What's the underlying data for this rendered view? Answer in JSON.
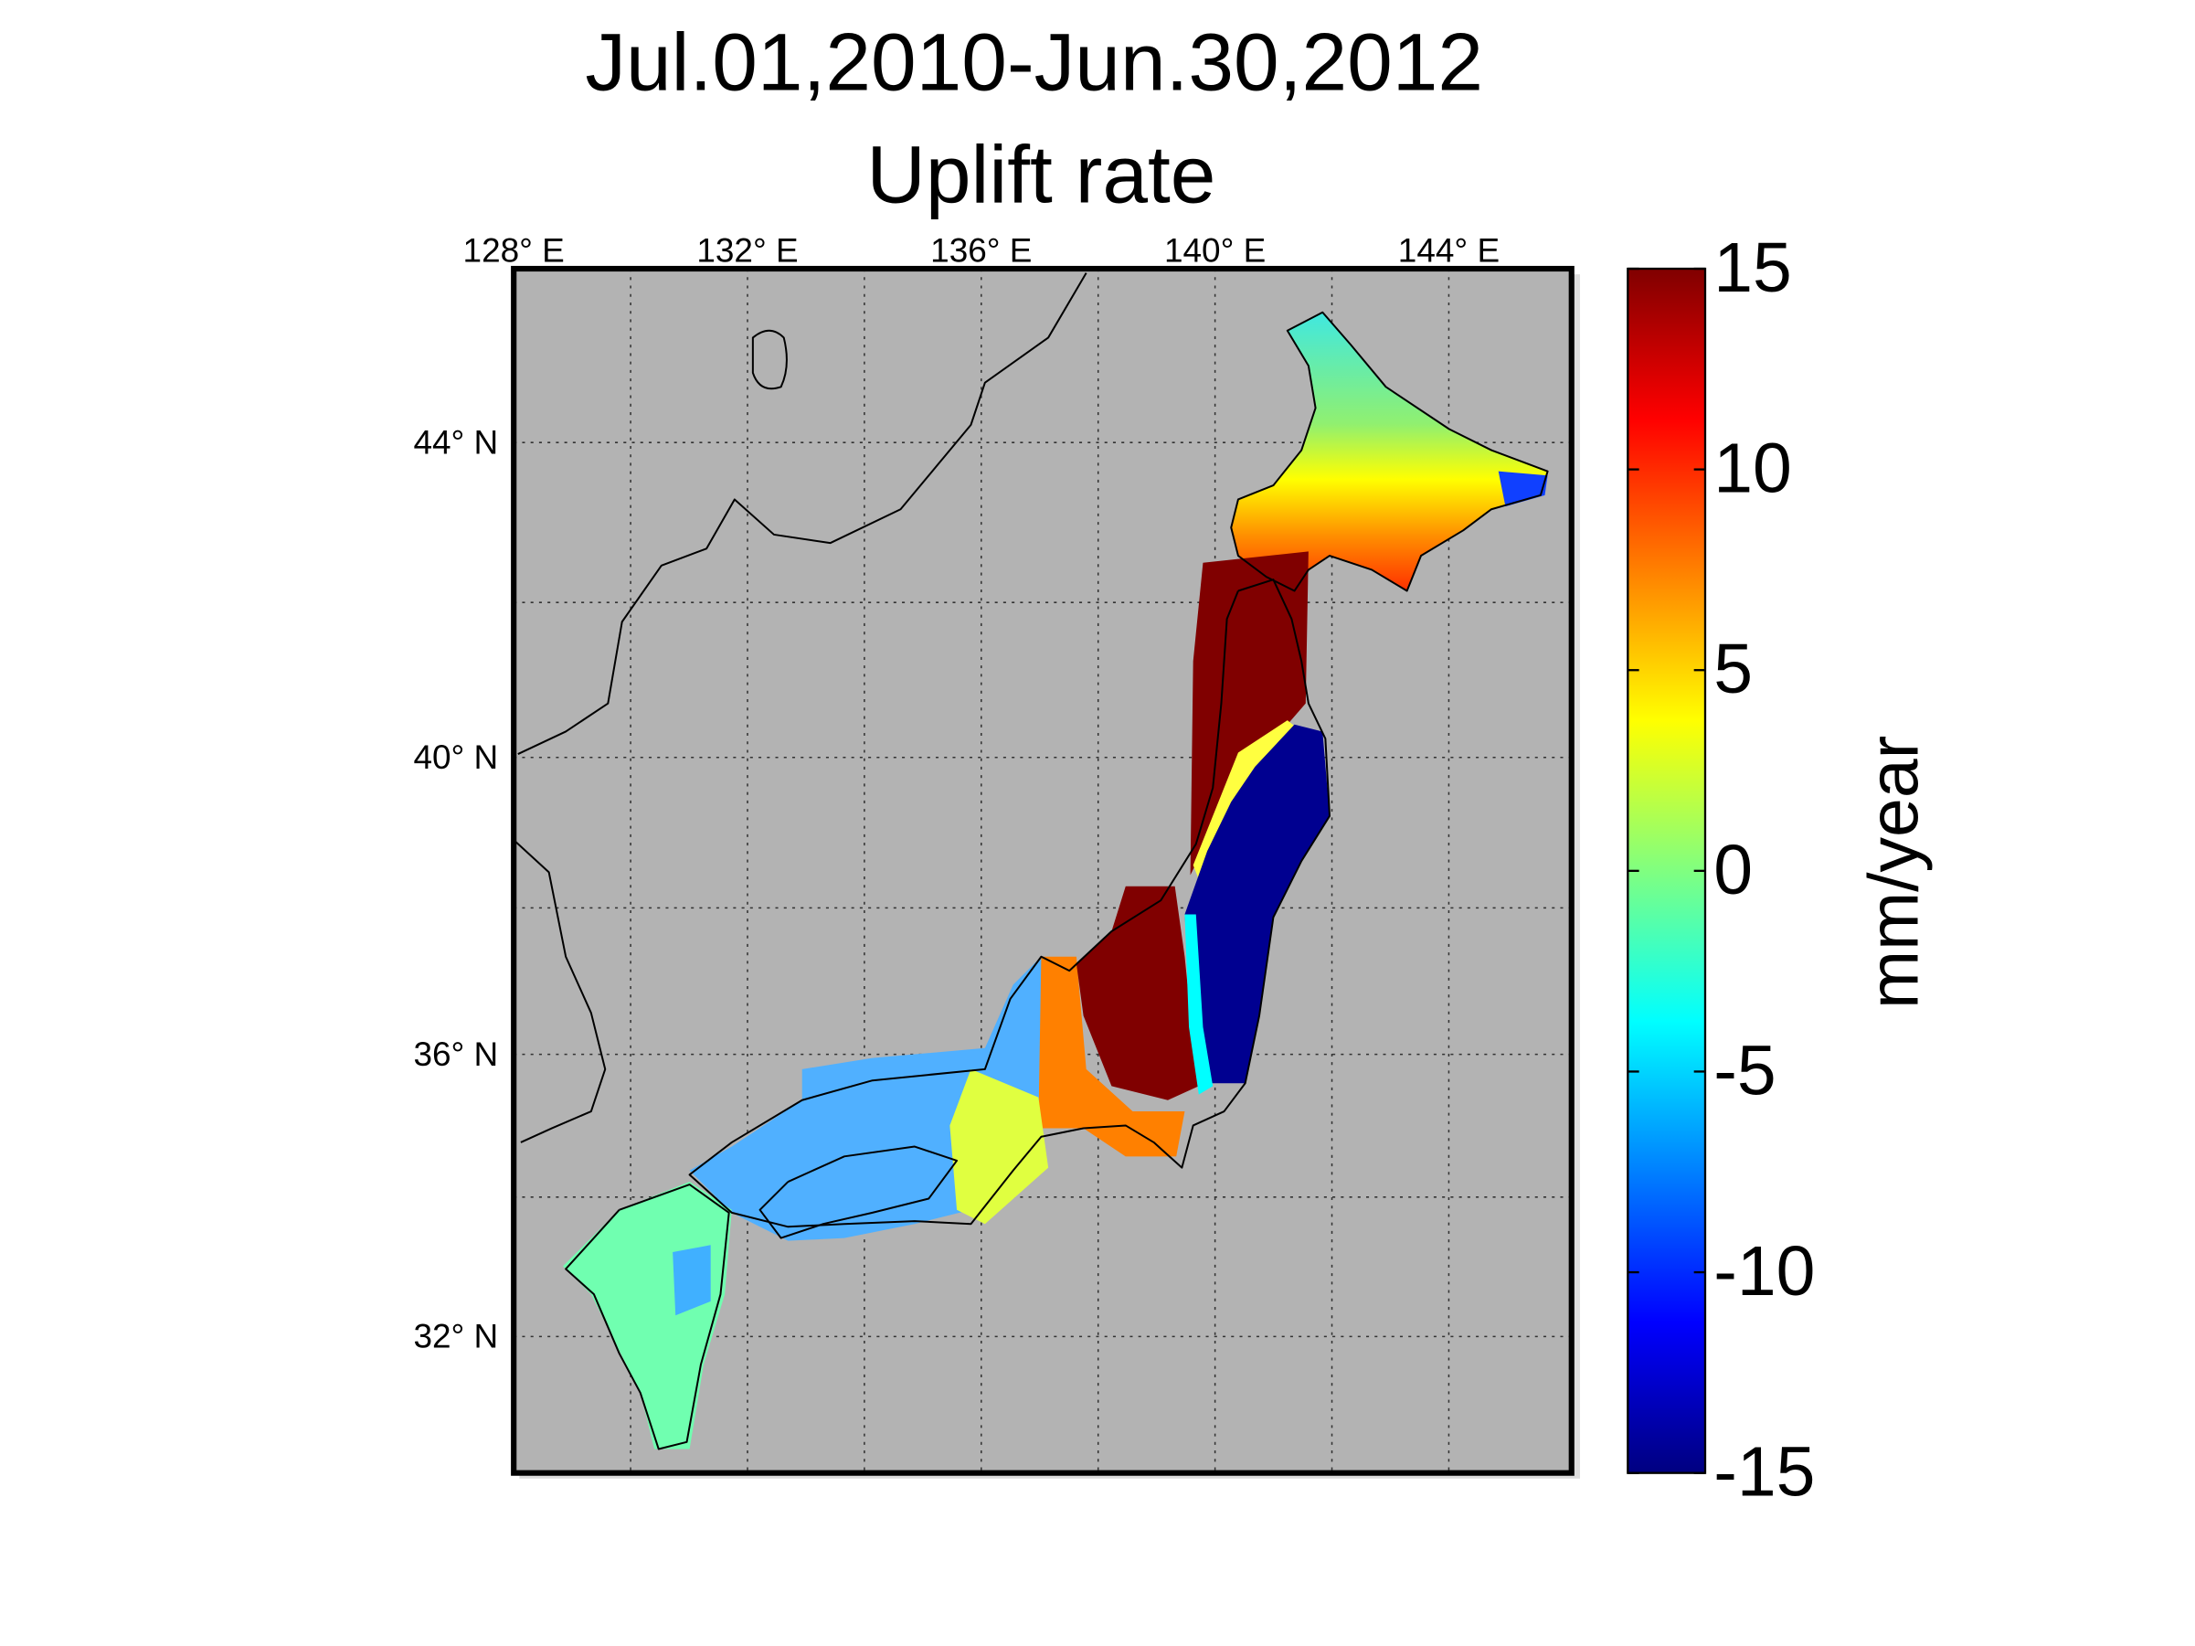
{
  "map": {
    "title": [
      "Jul.01,2010-Jun.30,2012",
      "Uplift rate"
    ],
    "lon_lim": [
      128,
      146.1
    ],
    "lat_lim": [
      30,
      46.1
    ],
    "lon_ticks": [
      {
        "value": 128,
        "label": "128° E"
      },
      {
        "value": 132,
        "label": "132° E"
      },
      {
        "value": 136,
        "label": "136° E"
      },
      {
        "value": 140,
        "label": "140° E"
      },
      {
        "value": 144,
        "label": "144° E"
      }
    ],
    "lat_ticks": [
      {
        "value": 44,
        "label": "44° N"
      },
      {
        "value": 40,
        "label": "40° N"
      },
      {
        "value": 36,
        "label": "36° N"
      },
      {
        "value": 32,
        "label": "32° N"
      }
    ],
    "grid_lon": [
      130,
      132,
      134,
      136,
      138,
      140,
      142,
      144
    ],
    "grid_lat": [
      32,
      34,
      36,
      38,
      40,
      42,
      44
    ],
    "colorbar": {
      "label": "mm/year",
      "lim": [
        -15,
        15
      ],
      "ticks": [
        15,
        10,
        5,
        0,
        -5,
        -10,
        -15
      ]
    }
  }
}
